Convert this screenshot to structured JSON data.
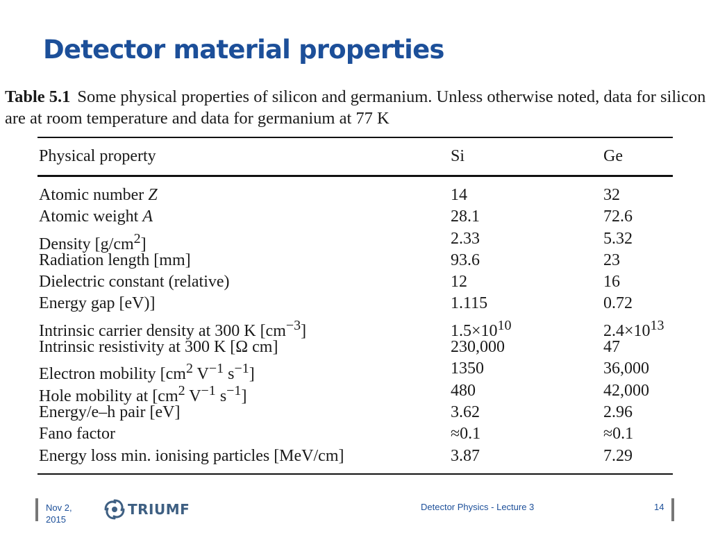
{
  "slide": {
    "title": "Detector material properties"
  },
  "table": {
    "caption_label": "Table 5.1",
    "caption_text": "Some physical properties of silicon and germanium. Unless otherwise noted, data for silicon are at room temperature and data for germanium at 77 K",
    "headers": [
      "Physical property",
      "Si",
      "Ge"
    ],
    "rows": [
      [
        "Atomic number <i>Z</i>",
        "14",
        "32"
      ],
      [
        "Atomic weight <i>A</i>",
        "28.1",
        "72.6"
      ],
      [
        "Density [g/cm<sup>2</sup>]",
        "2.33",
        "5.32"
      ],
      [
        "Radiation length [mm]",
        "93.6",
        "23"
      ],
      [
        "Dielectric constant (relative)",
        "12",
        "16"
      ],
      [
        "Energy gap [eV)]",
        "1.115",
        "0.72"
      ],
      [
        "Intrinsic carrier density at 300 K [cm<sup>−3</sup>]",
        "1.5×10<sup>10</sup>",
        "2.4×10<sup>13</sup>"
      ],
      [
        "Intrinsic resistivity at 300 K [Ω cm]",
        "230,000",
        "47"
      ],
      [
        "Electron mobility [cm<sup>2</sup> V<sup>−1</sup> s<sup>−1</sup>]",
        "1350",
        "36,000"
      ],
      [
        "Hole mobility at [cm<sup>2</sup> V<sup>−1</sup> s<sup>−1</sup>]",
        "480",
        "42,000"
      ],
      [
        "Energy/e–h pair [eV]",
        "3.62",
        "2.96"
      ],
      [
        "Fano factor",
        "≈0.1",
        "≈0.1"
      ],
      [
        "Energy loss min. ionising particles [MeV/cm]",
        "3.87",
        "7.29"
      ]
    ]
  },
  "footer": {
    "date": "Nov 2, 2015",
    "logo_text": "TRIUMF",
    "logo_icon": "triumf-swirl-icon",
    "center_text": "Detector Physics - Lecture 3",
    "page_number": "14"
  },
  "colors": {
    "title": "#1c4f99",
    "footer_text": "#1c4f99",
    "logo": "#3e5f82"
  }
}
